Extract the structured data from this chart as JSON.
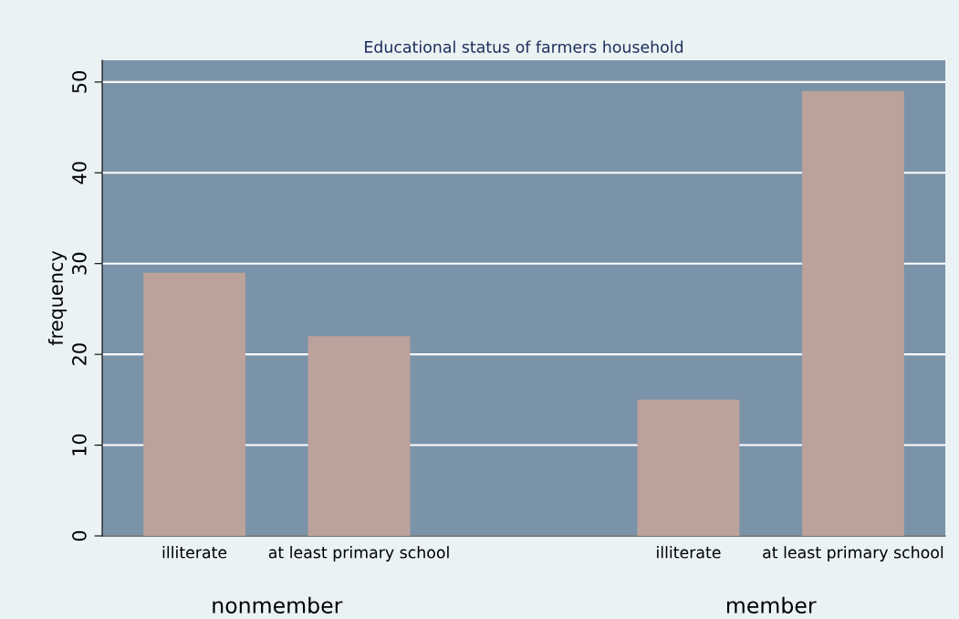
{
  "chart_data": {
    "type": "bar",
    "title": "Educational status of farmers household",
    "ylabel": "frequency",
    "categories": [
      "illiterate",
      "at least primary school",
      null,
      "illiterate",
      "at least primary school"
    ],
    "values": [
      29,
      22,
      null,
      15,
      49
    ],
    "color": "#bba29b",
    "annotations": [
      "nonmember",
      "member"
    ],
    "ylim": [
      0,
      52.4
    ],
    "yticks": [
      0,
      10,
      20,
      30,
      40,
      50
    ],
    "grid": "y",
    "legend": false
  }
}
